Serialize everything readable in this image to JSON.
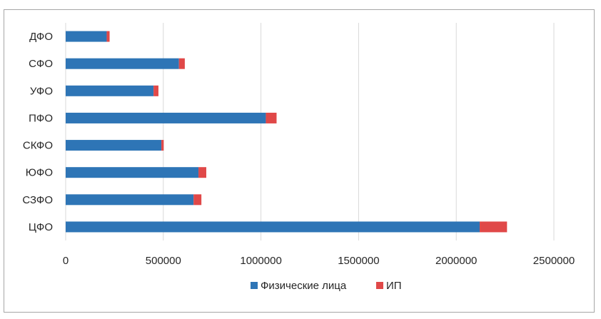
{
  "chart_data": {
    "type": "bar",
    "orientation": "horizontal",
    "stacked": true,
    "categories": [
      "ЦФО",
      "СЗФО",
      "ЮФО",
      "СКФО",
      "ПФО",
      "УФО",
      "СФО",
      "ДФО"
    ],
    "series": [
      {
        "name": "Физические лица",
        "color": "#2e75b6",
        "values": [
          2120000,
          655000,
          680000,
          490000,
          1025000,
          450000,
          580000,
          210000
        ]
      },
      {
        "name": "ИП",
        "color": "#e04848",
        "values": [
          140000,
          40000,
          40000,
          12000,
          55000,
          25000,
          30000,
          15000
        ]
      }
    ],
    "xlim": [
      0,
      2500000
    ],
    "x_ticks": [
      "0",
      "500000",
      "1000000",
      "1500000",
      "2000000",
      "2500000"
    ],
    "grid": true,
    "legend_position": "bottom",
    "title": "",
    "xlabel": "",
    "ylabel": ""
  }
}
